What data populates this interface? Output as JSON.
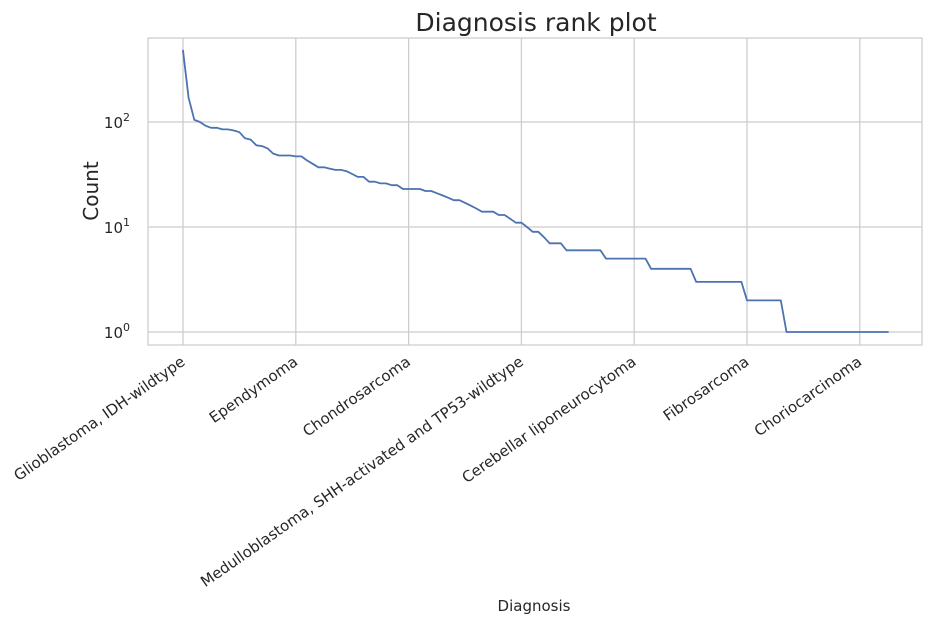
{
  "chart_data": {
    "type": "line",
    "title": "Diagnosis rank plot",
    "xlabel": "Diagnosis",
    "ylabel": "Count",
    "yscale": "log",
    "ylim": [
      0.8,
      600
    ],
    "grid": true,
    "legend": "none",
    "color": "#4c72b0",
    "ytick_labels": [
      {
        "value": 1,
        "base": "10",
        "exponent": "0"
      },
      {
        "value": 10,
        "base": "10",
        "exponent": "1"
      },
      {
        "value": 100,
        "base": "10",
        "exponent": "2"
      }
    ],
    "xtick_labels": [
      {
        "rank": 0,
        "label": "Glioblastoma, IDH-wildtype"
      },
      {
        "rank": 20,
        "label": "Ependymoma"
      },
      {
        "rank": 40,
        "label": "Chondrosarcoma"
      },
      {
        "rank": 60,
        "label": "Medulloblastoma, SHH-activated and TP53-wildtype"
      },
      {
        "rank": 80,
        "label": "Cerebellar liponeurocytoma"
      },
      {
        "rank": 100,
        "label": "Fibrosarcoma"
      },
      {
        "rank": 120,
        "label": "Choriocarcinoma"
      }
    ],
    "x": [
      0,
      1,
      2,
      3,
      4,
      5,
      6,
      7,
      8,
      9,
      10,
      11,
      12,
      13,
      14,
      15,
      16,
      17,
      18,
      19,
      20,
      21,
      22,
      23,
      24,
      25,
      26,
      27,
      28,
      29,
      30,
      31,
      32,
      33,
      34,
      35,
      36,
      37,
      38,
      39,
      40,
      41,
      42,
      43,
      44,
      45,
      46,
      47,
      48,
      49,
      50,
      51,
      52,
      53,
      54,
      55,
      56,
      57,
      58,
      59,
      60,
      61,
      62,
      63,
      64,
      65,
      66,
      67,
      68,
      69,
      70,
      71,
      72,
      73,
      74,
      75,
      76,
      77,
      78,
      79,
      80,
      81,
      82,
      83,
      84,
      85,
      86,
      87,
      88,
      89,
      90,
      91,
      92,
      93,
      94,
      95,
      96,
      97,
      98,
      99,
      100,
      101,
      102,
      103,
      104,
      105,
      106,
      107,
      108,
      109,
      110,
      111,
      112,
      113,
      114,
      115,
      116,
      117,
      118,
      119,
      120,
      121,
      122,
      123,
      124,
      125
    ],
    "y": [
      480,
      170,
      105,
      100,
      92,
      88,
      88,
      85,
      85,
      83,
      80,
      70,
      68,
      60,
      59,
      56,
      50,
      48,
      48,
      48,
      47,
      47,
      43,
      40,
      37,
      37,
      36,
      35,
      35,
      34,
      32,
      30,
      30,
      27,
      27,
      26,
      26,
      25,
      25,
      23,
      23,
      23,
      23,
      22,
      22,
      21,
      20,
      19,
      18,
      18,
      17,
      16,
      15,
      14,
      14,
      14,
      13,
      13,
      12,
      11,
      11,
      10,
      9,
      9,
      8,
      7,
      7,
      7,
      6,
      6,
      6,
      6,
      6,
      6,
      6,
      5,
      5,
      5,
      5,
      5,
      5,
      5,
      5,
      4,
      4,
      4,
      4,
      4,
      4,
      4,
      4,
      3,
      3,
      3,
      3,
      3,
      3,
      3,
      3,
      3,
      2,
      2,
      2,
      2,
      2,
      2,
      2,
      1,
      1,
      1,
      1,
      1,
      1,
      1,
      1,
      1,
      1,
      1,
      1,
      1,
      1,
      1,
      1,
      1,
      1,
      1
    ]
  }
}
